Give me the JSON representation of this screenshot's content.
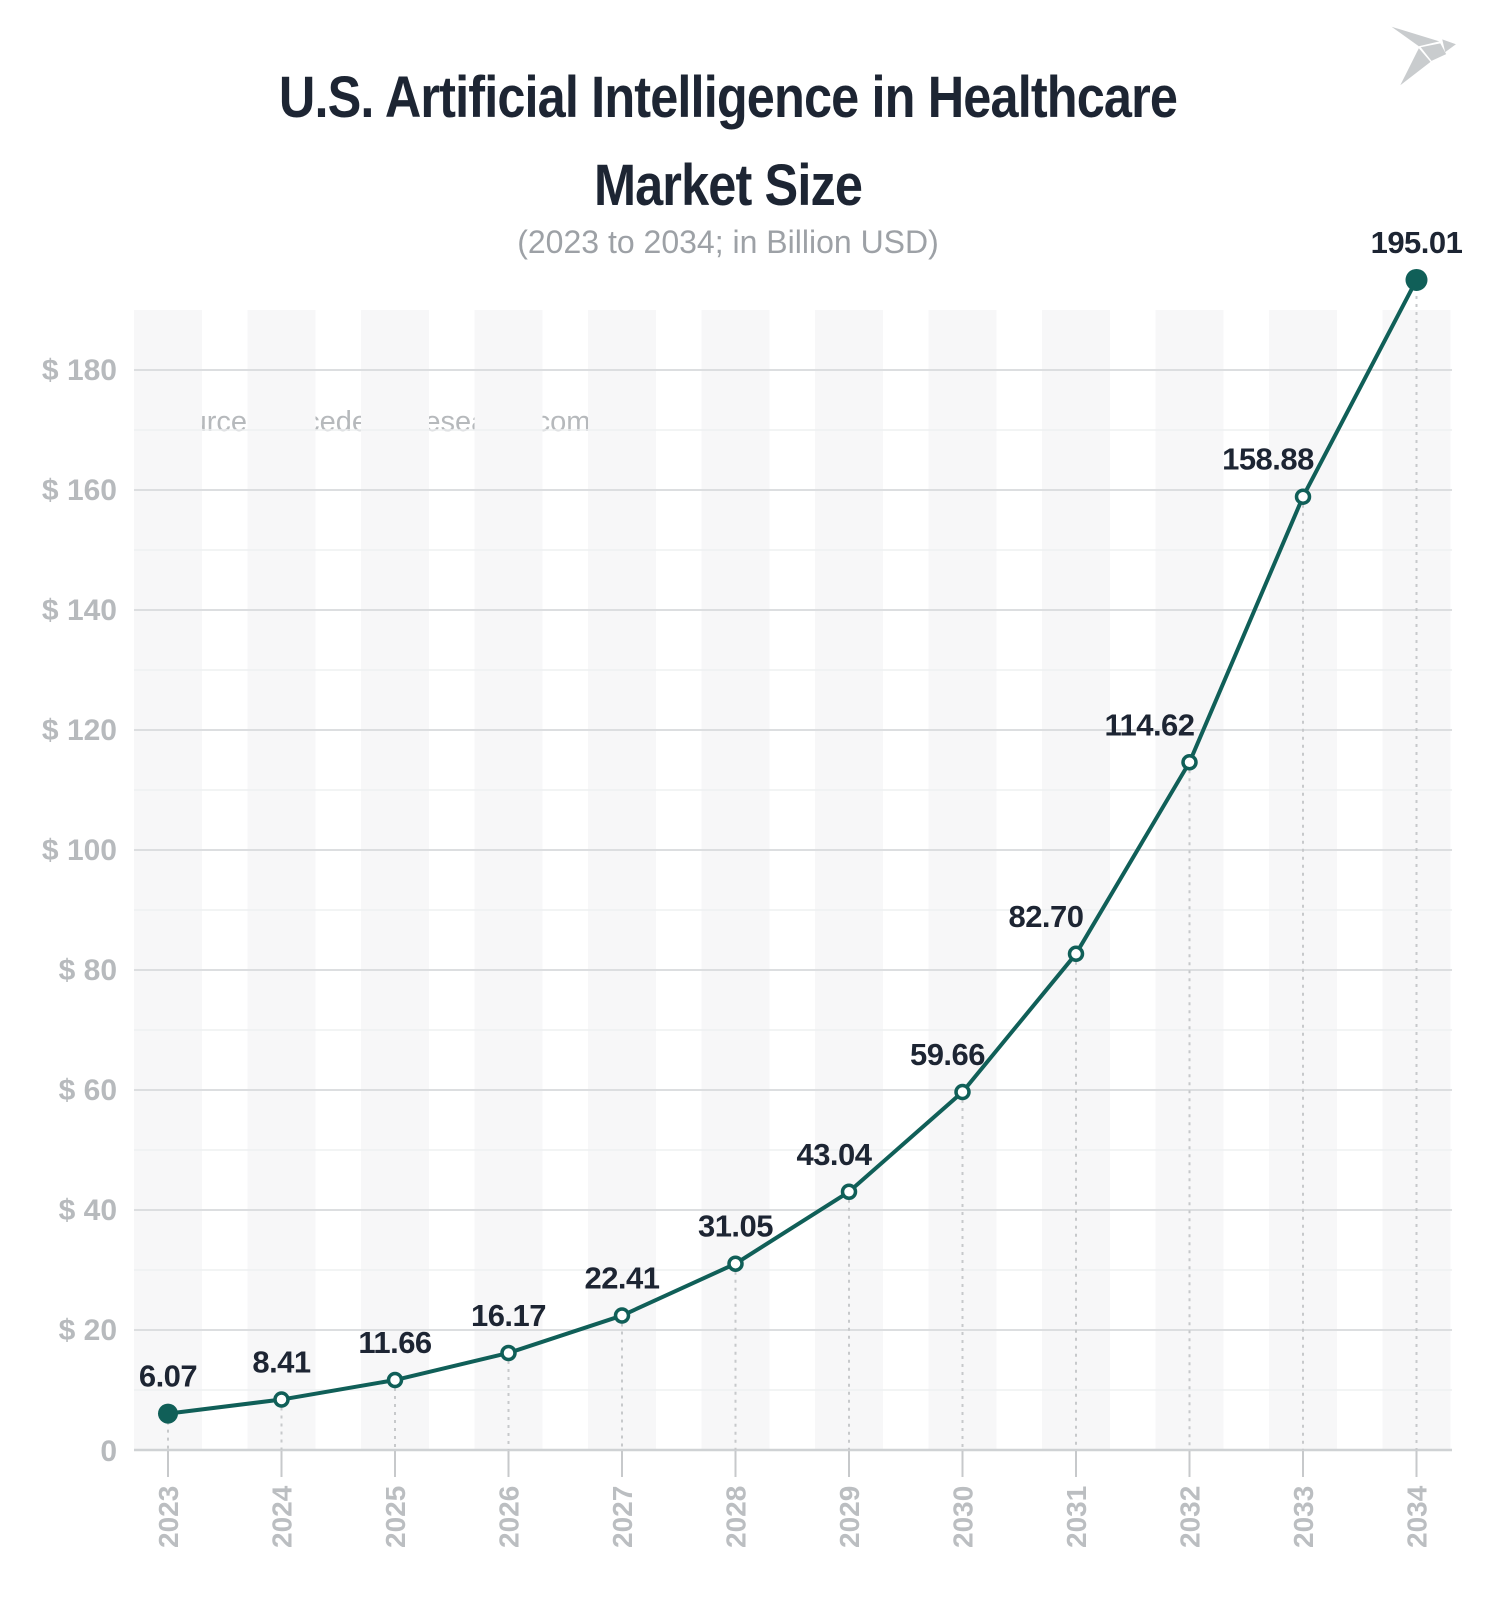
{
  "header": {
    "title_lines": [
      "U.S. Artificial Intelligence in Healthcare",
      "Market Size"
    ],
    "subtitle": "(2023 to 2034; in Billion USD)",
    "logo_icon": "origami-bird"
  },
  "source_note": "source: precedenceresearch.com",
  "chart_data": {
    "type": "line",
    "title": "U.S. Artificial Intelligence in Healthcare Market Size",
    "subtitle": "(2023 to 2034; in Billion USD)",
    "unit": "Billion USD",
    "categories": [
      "2023",
      "2024",
      "2025",
      "2026",
      "2027",
      "2028",
      "2029",
      "2030",
      "2031",
      "2032",
      "2033",
      "2034"
    ],
    "values": [
      6.07,
      8.41,
      11.66,
      16.17,
      22.41,
      31.05,
      43.04,
      59.66,
      82.7,
      114.62,
      158.88,
      195.01
    ],
    "point_labels": [
      "6.07",
      "8.41",
      "11.66",
      "16.17",
      "22.41",
      "31.05",
      "43.04",
      "59.66",
      "82.70",
      "114.62",
      "158.88",
      "195.01"
    ],
    "y_axis": {
      "prefix": "$ ",
      "major_ticks": [
        180,
        160,
        140,
        120,
        100,
        80,
        60,
        40,
        20
      ],
      "zero_label": "0",
      "range": [
        0,
        195.01
      ],
      "minor_grid_step": 10
    },
    "x_axis": {
      "label_rotation_deg": -90
    },
    "grid": {
      "major": true,
      "minor": true,
      "column_bands": true
    },
    "legend": null,
    "style": {
      "line_color": "#105f58",
      "marker_fill": "#ffffff",
      "endpoint_fill": "#105f58",
      "value_label_color": "#1d2533",
      "title_color": "#1d2533",
      "subtitle_color": "#9da1a6",
      "axis_label_color": "#b7babd",
      "x_label_color": "#bbbec1",
      "band_color": "#f7f7f8",
      "major_grid_color": "#dcdee0",
      "minor_grid_color": "#eef0f1",
      "baseline_color": "#cfd2d4",
      "tick_color": "#c7c9cb",
      "drop_line_color": "#c7c9cb",
      "source_color": "#b6b9bc",
      "logo_color": "#c9ccce"
    }
  }
}
